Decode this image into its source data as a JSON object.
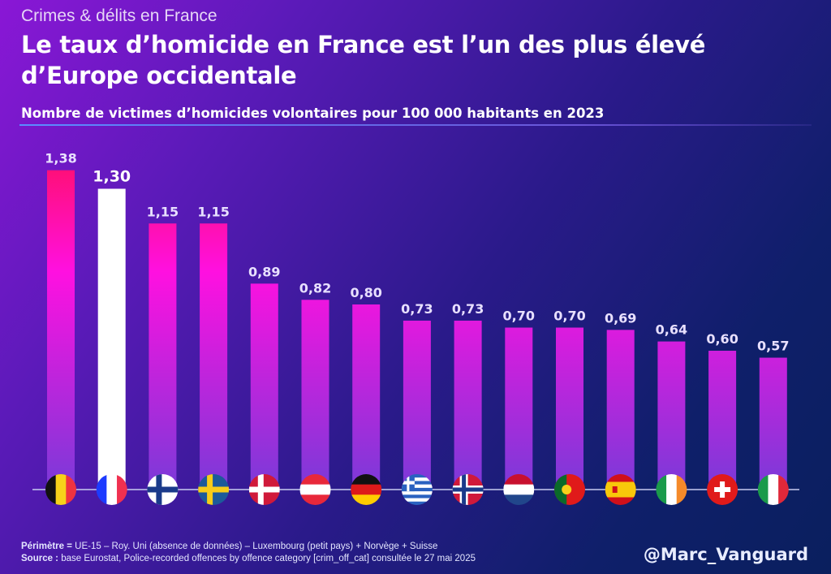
{
  "kicker": "Crimes & délits en France",
  "title": "Le taux d’homicide en France est l’un des plus élevé d’Europe occidentale",
  "handle": "@Marc_Vanguard",
  "footer": {
    "perimetre_label": "Périmètre =",
    "perimetre_text": " UE-15 – Roy. Uni (absence de données) – Luxembourg (petit pays) + Norvège + Suisse",
    "source_label": "Source :",
    "source_text": " base Eurostat, Police-recorded offences by offence category [crim_off_cat]  consultée le 27 mai 2025"
  },
  "chart_data": {
    "type": "bar",
    "title": "Nombre de victimes d’homicides volontaires pour 100 000 habitants en 2023",
    "ylim": [
      0,
      1.4
    ],
    "grid": false,
    "values": [
      1.38,
      1.3,
      1.15,
      1.15,
      0.89,
      0.82,
      0.8,
      0.73,
      0.73,
      0.7,
      0.7,
      0.69,
      0.64,
      0.6,
      0.57
    ],
    "labels": [
      "1,38",
      "1,30",
      "1,15",
      "1,15",
      "0,89",
      "0,82",
      "0,80",
      "0,73",
      "0,73",
      "0,70",
      "0,70",
      "0,69",
      "0,64",
      "0,60",
      "0,57"
    ],
    "highlight_index": 1,
    "colors": {
      "top": "#ff0f5a",
      "mid": "#ff10e0",
      "bottom": "#7a3ad8",
      "highlight": "#ffffff"
    },
    "categories": [
      {
        "icon": "belgium-flag-icon",
        "kind": "v",
        "colors": [
          "#111111",
          "#f7d21a",
          "#ef3340"
        ]
      },
      {
        "icon": "france-flag-icon",
        "kind": "v",
        "colors": [
          "#1d3bff",
          "#ffffff",
          "#f03050"
        ]
      },
      {
        "icon": "finland-flag-icon",
        "kind": "cross",
        "colors": [
          "#ffffff",
          "#1a3a8a"
        ]
      },
      {
        "icon": "sweden-flag-icon",
        "kind": "cross",
        "colors": [
          "#1d5a9a",
          "#f8cc1a"
        ]
      },
      {
        "icon": "denmark-flag-icon",
        "kind": "cross",
        "colors": [
          "#d0193a",
          "#ffffff"
        ]
      },
      {
        "icon": "austria-flag-icon",
        "kind": "h",
        "colors": [
          "#e8283a",
          "#ffffff",
          "#e8283a"
        ]
      },
      {
        "icon": "germany-flag-icon",
        "kind": "h",
        "colors": [
          "#111111",
          "#dd1a1a",
          "#ffcc00"
        ]
      },
      {
        "icon": "greece-flag-icon",
        "kind": "greece",
        "colors": [
          "#2a62c0",
          "#ffffff"
        ]
      },
      {
        "icon": "norway-flag-icon",
        "kind": "cross2",
        "colors": [
          "#d0193a",
          "#ffffff",
          "#1a3a8a"
        ]
      },
      {
        "icon": "netherlands-flag-icon",
        "kind": "h",
        "colors": [
          "#c8102e",
          "#ffffff",
          "#21468b"
        ]
      },
      {
        "icon": "portugal-flag-icon",
        "kind": "portugal",
        "colors": [
          "#0a6a2a",
          "#e01a1a",
          "#f8d01a"
        ]
      },
      {
        "icon": "spain-flag-icon",
        "kind": "spain",
        "colors": [
          "#d0101a",
          "#f8c80a"
        ]
      },
      {
        "icon": "ireland-flag-icon",
        "kind": "v",
        "colors": [
          "#1a9a4a",
          "#ffffff",
          "#f58a2a"
        ]
      },
      {
        "icon": "switzerland-flag-icon",
        "kind": "swiss",
        "colors": [
          "#e01a1a",
          "#ffffff"
        ]
      },
      {
        "icon": "italy-flag-icon",
        "kind": "v",
        "colors": [
          "#1a9a4a",
          "#ffffff",
          "#e0283a"
        ]
      }
    ]
  }
}
